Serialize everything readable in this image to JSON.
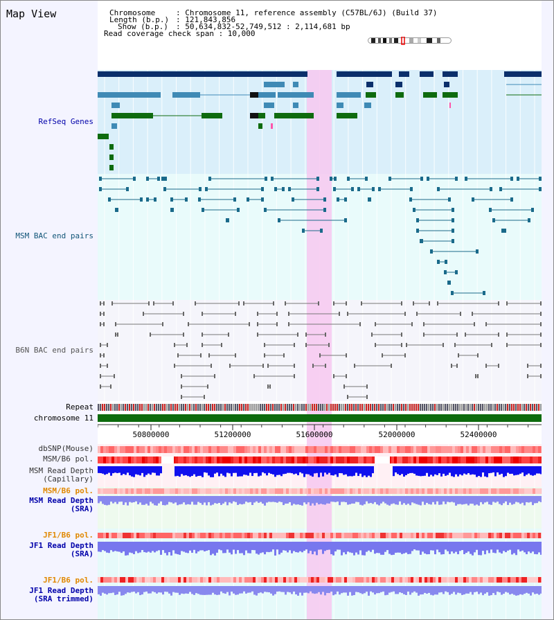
{
  "title": "Map View",
  "header": {
    "chromosome_label": "Chromosome",
    "chromosome_value": ": Chromosome 11, reference assembly (C57BL/6J) (Build 37)",
    "length_label": "Length (b.p.)",
    "length_value": ": 121,843,856",
    "show_label": "Show (b.p.)",
    "show_value": ": 50,634,832-52,749,512 : 2,114,681 bp",
    "coverage_text": "Read coverage check span : 10,000"
  },
  "tracks": {
    "refseq": "RefSeq Genes",
    "msm_bac": "MSM BAC end pairs",
    "b6n_bac": "B6N BAC end pairs",
    "repeat": "Repeat",
    "chromosome": "chromosome 11",
    "dbsnp": "dbSNP(Mouse)",
    "msm_pol": "MSM/B6 pol.",
    "msm_depth_cap_1": "MSM Read Depth",
    "msm_depth_cap_2": "(Capillary)",
    "msm_pol_sra": "MSM/B6 pol.",
    "msm_depth_sra_1": "MSM Read Depth",
    "msm_depth_sra_2": "(SRA)",
    "jf1_pol_1": "JF1/B6 pol.",
    "jf1_depth_1": "JF1 Read Depth",
    "jf1_depth_1b": "(SRA)",
    "jf1_pol_2": "JF1/B6 pol.",
    "jf1_depth_2": "JF1 Read Depth",
    "jf1_depth_2b": "(SRA trimmed)"
  },
  "axis": {
    "ticks": [
      "50800000",
      "51200000",
      "51600000",
      "52000000",
      "52400000"
    ]
  },
  "colors": {
    "gene_dark": "#0b2f6b",
    "gene_mid": "#3f8ab5",
    "gene_green": "#0e6b0e",
    "msm_line": "#1a6a8a",
    "b6n_line": "#666666",
    "highlight": "#f7c8f0",
    "label_blue": "#0000aa",
    "label_orange": "#e08800",
    "label_teal": "#115577",
    "depth_blue": "#1010ee",
    "depth_light": "#8888ee"
  }
}
